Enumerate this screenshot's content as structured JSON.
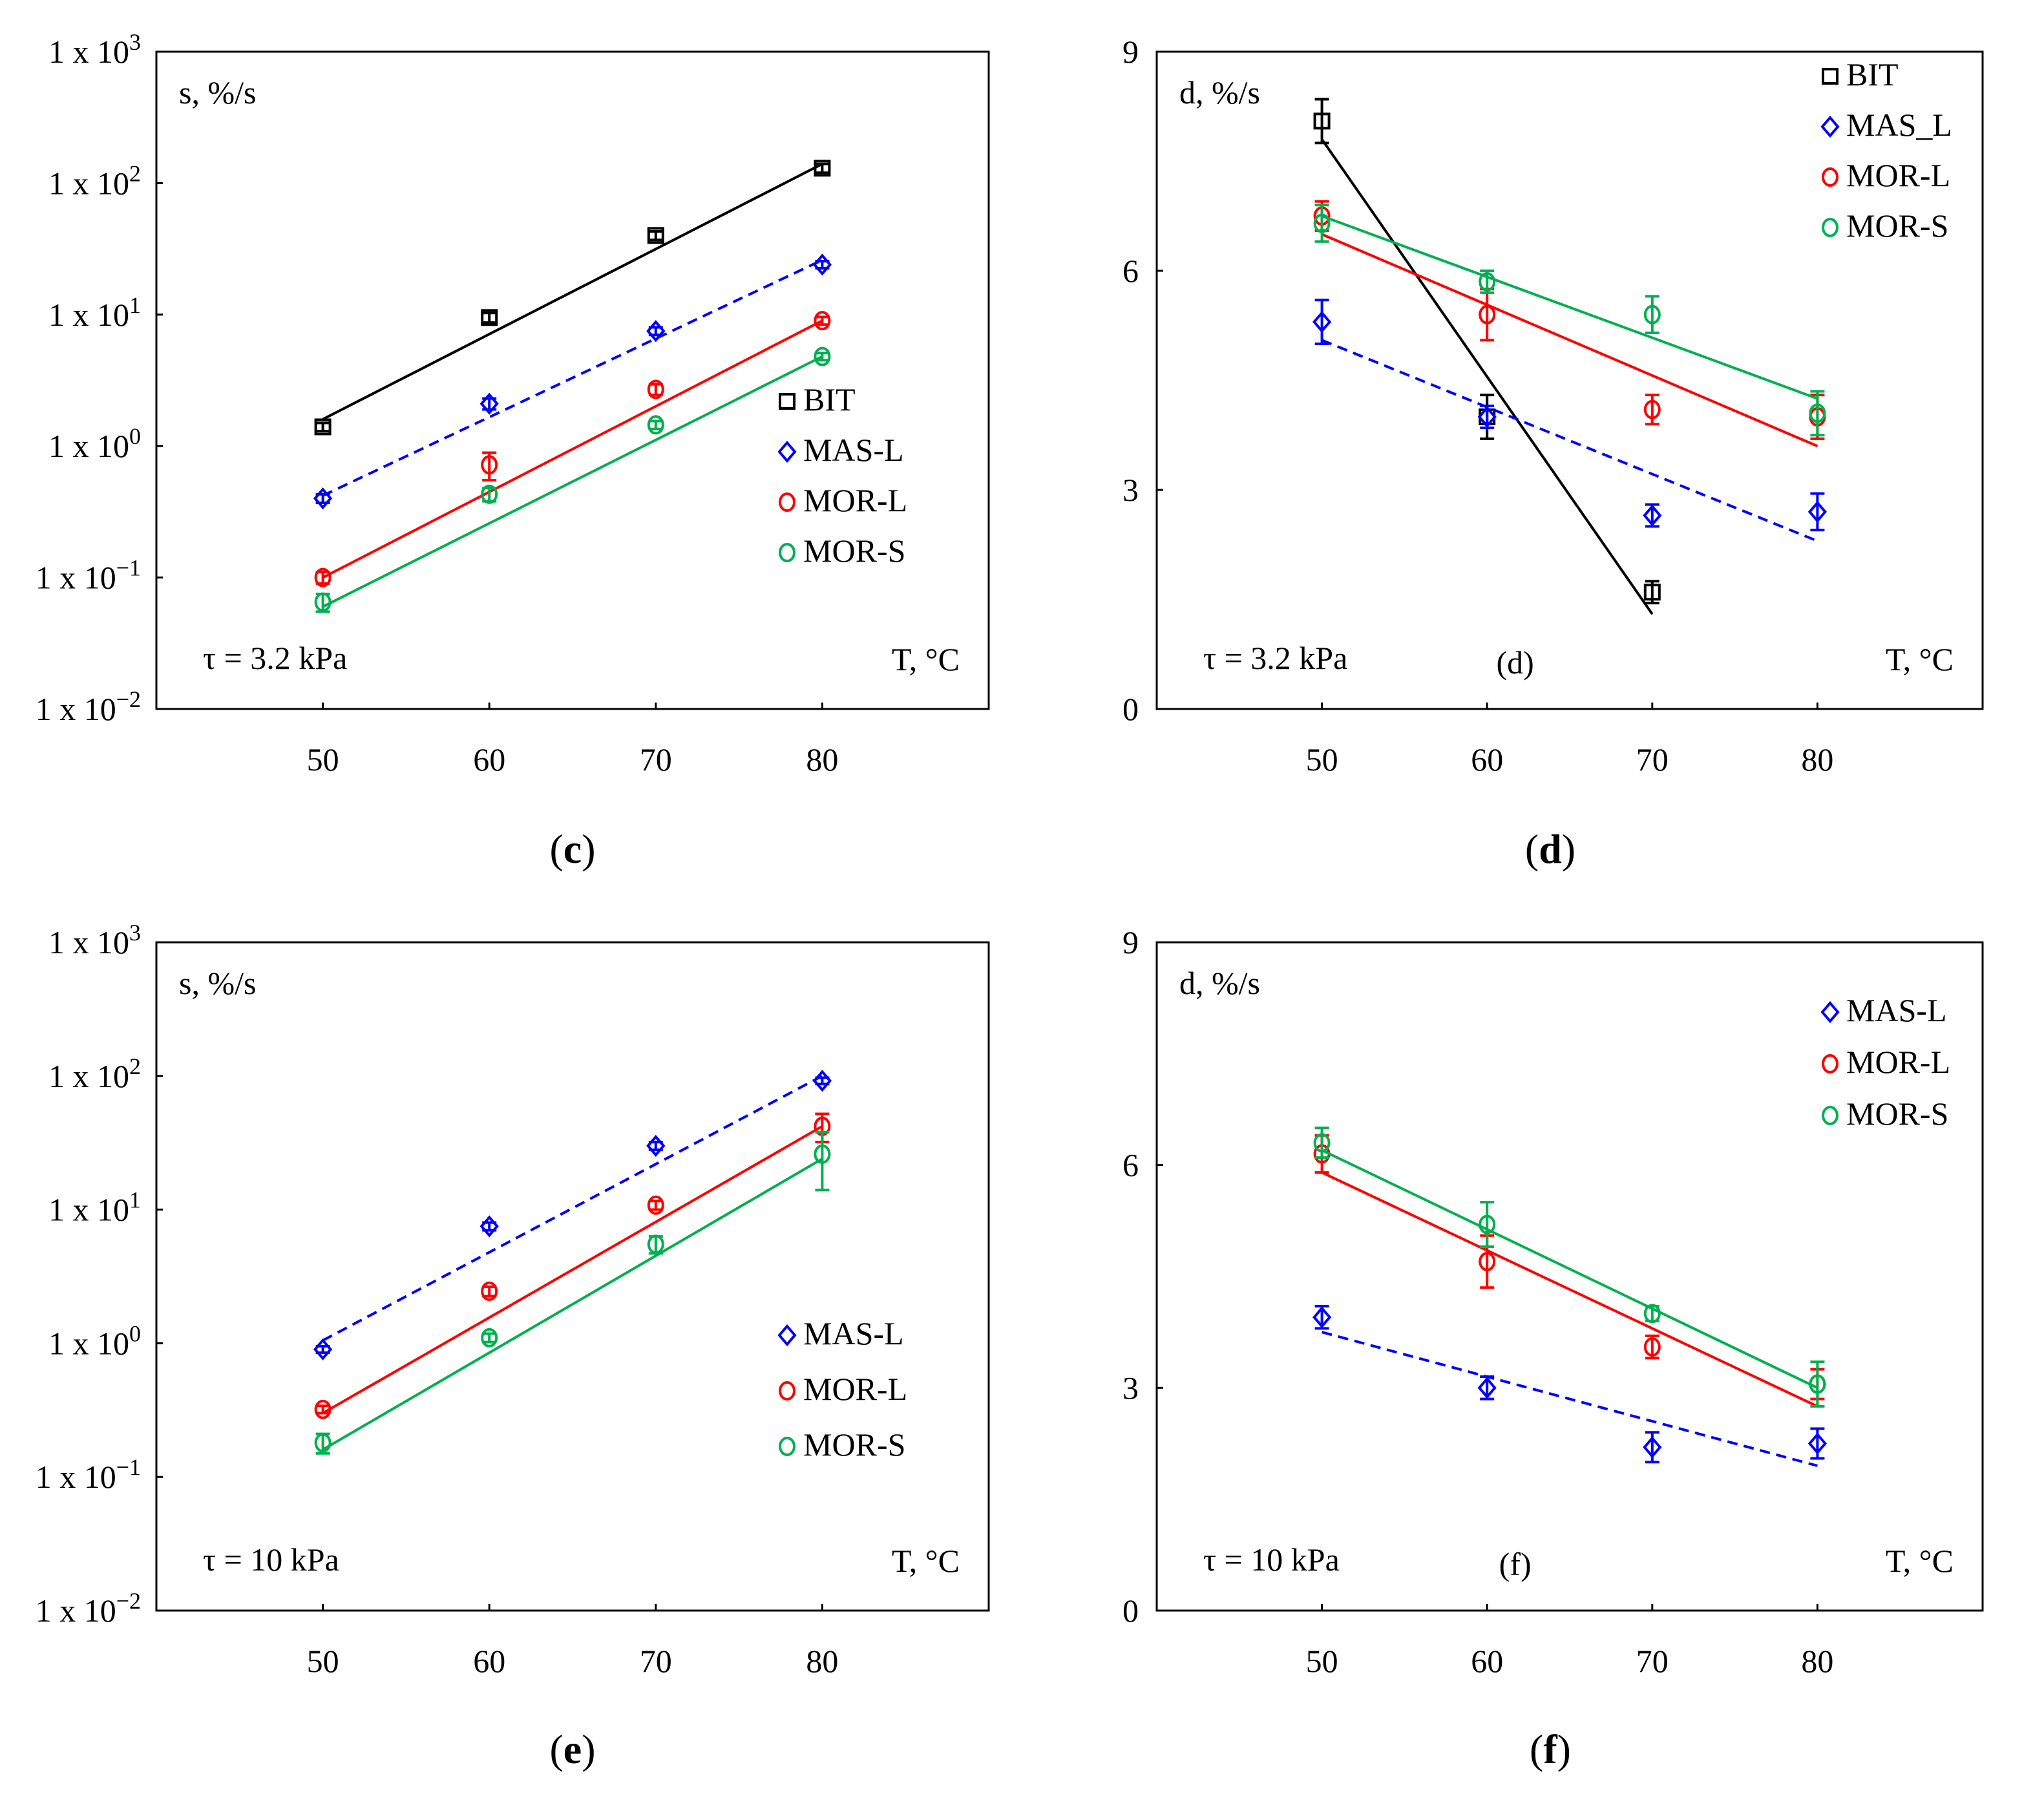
{
  "colors": {
    "BIT": "#000000",
    "MAS-L": "#0000ff",
    "MOR-L": "#ff0000",
    "MOR-S": "#00b050",
    "axis": "#000000",
    "background": "#ffffff"
  },
  "markers": {
    "BIT": "square",
    "MAS-L": "diamond",
    "MOR-L": "circle",
    "MOR-S": "circle"
  },
  "chart_data": [
    {
      "id": "c",
      "type": "scatter",
      "yscale": "log",
      "ylabel": "s, %/s",
      "xlabel": "T, °C",
      "annotation": "τ = 3.2 kPa",
      "caption": {
        "open": "(",
        "letter": "c",
        "close": ")"
      },
      "x": [
        50,
        60,
        70,
        80
      ],
      "xlim": [
        40,
        90
      ],
      "ylim": [
        0.01,
        1000
      ],
      "xticks": [
        50,
        60,
        70,
        80
      ],
      "yticks": [
        {
          "value": 1000,
          "base": "1 x 10",
          "exp": "3"
        },
        {
          "value": 100,
          "base": "1 x 10",
          "exp": "2"
        },
        {
          "value": 10,
          "base": "1 x 10",
          "exp": "1"
        },
        {
          "value": 1,
          "base": "1 x 10",
          "exp": "0"
        },
        {
          "value": 0.1,
          "base": "1 x 10",
          "exp": "−1"
        },
        {
          "value": 0.01,
          "base": "1 x 10",
          "exp": "−2"
        }
      ],
      "legend_position": "center-right",
      "series": [
        {
          "name": "BIT",
          "values": [
            1.4,
            9.5,
            40,
            130
          ],
          "err": [
            0.1,
            0.8,
            3,
            10
          ],
          "fit": {
            "form": "exp",
            "x": [
              50,
              80
            ],
            "y": [
              1.6,
              140
            ]
          },
          "dashed": false
        },
        {
          "name": "MAS-L",
          "values": [
            0.4,
            2.1,
            7.5,
            24
          ],
          "err": [
            0.03,
            0.2,
            0.5,
            1.5
          ],
          "fit": {
            "form": "exp",
            "x": [
              50,
              80
            ],
            "y": [
              0.42,
              26
            ]
          },
          "dashed": true
        },
        {
          "name": "MOR-L",
          "values": [
            0.1,
            0.72,
            2.7,
            9
          ],
          "err": [
            0.01,
            0.17,
            0.25,
            0.6
          ],
          "fit": {
            "form": "exp",
            "x": [
              50,
              80
            ],
            "y": [
              0.1,
              9
            ]
          },
          "dashed": false
        },
        {
          "name": "MOR-S",
          "values": [
            0.065,
            0.43,
            1.45,
            4.8
          ],
          "err": [
            0.01,
            0.05,
            0.1,
            0.3
          ],
          "fit": {
            "form": "exp",
            "x": [
              50,
              80
            ],
            "y": [
              0.06,
              4.8
            ]
          },
          "dashed": false
        }
      ]
    },
    {
      "id": "d",
      "type": "scatter",
      "yscale": "linear",
      "ylabel": "d, %/s",
      "xlabel": "T, °C",
      "annotation": "τ = 3.2 kPa",
      "panel_label": "(d)",
      "caption": {
        "open": "(",
        "letter": "d",
        "close": ")"
      },
      "x": [
        50,
        60,
        70,
        80
      ],
      "xlim": [
        40,
        90
      ],
      "ylim": [
        0,
        9
      ],
      "xticks": [
        50,
        60,
        70,
        80
      ],
      "yticks": [
        {
          "value": 9,
          "label": "9"
        },
        {
          "value": 6,
          "label": "6"
        },
        {
          "value": 3,
          "label": "3"
        },
        {
          "value": 0,
          "label": "0"
        }
      ],
      "legend_position": "top-right",
      "series": [
        {
          "name": "BIT",
          "x": [
            50,
            60,
            70
          ],
          "values": [
            8.05,
            4.0,
            1.6
          ],
          "err": [
            0.3,
            0.3,
            0.15
          ],
          "fit": {
            "form": "linear",
            "x": [
              50,
              70
            ],
            "y": [
              7.8,
              1.3
            ]
          },
          "dashed": false
        },
        {
          "name": "MAS_L",
          "values": [
            5.3,
            4.0,
            2.65,
            2.7
          ],
          "err": [
            0.3,
            0.15,
            0.15,
            0.25
          ],
          "fit": {
            "form": "linear",
            "x": [
              50,
              80
            ],
            "y": [
              5.05,
              2.3
            ]
          },
          "dashed": true
        },
        {
          "name": "MOR-L",
          "values": [
            6.75,
            5.4,
            4.1,
            4.0
          ],
          "err": [
            0.2,
            0.35,
            0.2,
            0.3
          ],
          "fit": {
            "form": "linear",
            "x": [
              50,
              80
            ],
            "y": [
              6.5,
              3.6
            ]
          },
          "dashed": false
        },
        {
          "name": "MOR-S",
          "values": [
            6.65,
            5.85,
            5.4,
            4.05
          ],
          "err": [
            0.25,
            0.15,
            0.25,
            0.3
          ],
          "fit": {
            "form": "linear",
            "x": [
              50,
              80
            ],
            "y": [
              6.75,
              4.25
            ]
          },
          "dashed": false
        }
      ]
    },
    {
      "id": "e",
      "type": "scatter",
      "yscale": "log",
      "ylabel": "s, %/s",
      "xlabel": "T, °C",
      "annotation": "τ = 10 kPa",
      "caption": {
        "open": "(",
        "letter": "e",
        "close": ")"
      },
      "x": [
        50,
        60,
        70,
        80
      ],
      "xlim": [
        40,
        90
      ],
      "ylim": [
        0.01,
        1000
      ],
      "xticks": [
        50,
        60,
        70,
        80
      ],
      "yticks": [
        {
          "value": 1000,
          "base": "1 x 10",
          "exp": "3"
        },
        {
          "value": 100,
          "base": "1 x 10",
          "exp": "2"
        },
        {
          "value": 10,
          "base": "1 x 10",
          "exp": "1"
        },
        {
          "value": 1,
          "base": "1 x 10",
          "exp": "0"
        },
        {
          "value": 0.1,
          "base": "1 x 10",
          "exp": "−1"
        },
        {
          "value": 0.01,
          "base": "1 x 10",
          "exp": "−2"
        }
      ],
      "legend_position": "bottom-right",
      "series": [
        {
          "name": "MAS-L",
          "values": [
            0.9,
            7.5,
            30,
            92
          ],
          "err": [
            0.05,
            0.5,
            2,
            5
          ],
          "fit": {
            "form": "exp",
            "x": [
              50,
              80
            ],
            "y": [
              1.05,
              100
            ]
          },
          "dashed": true
        },
        {
          "name": "MOR-L",
          "values": [
            0.32,
            2.45,
            10.8,
            42
          ],
          "err": [
            0.02,
            0.2,
            0.8,
            10
          ],
          "fit": {
            "form": "exp",
            "x": [
              50,
              80
            ],
            "y": [
              0.3,
              42
            ]
          },
          "dashed": false
        },
        {
          "name": "MOR-S",
          "values": [
            0.18,
            1.1,
            5.5,
            26
          ],
          "err": [
            0.03,
            0.08,
            0.8,
            12
          ],
          "fit": {
            "form": "exp",
            "x": [
              50,
              80
            ],
            "y": [
              0.16,
              24
            ]
          },
          "dashed": false
        }
      ]
    },
    {
      "id": "f",
      "type": "scatter",
      "yscale": "linear",
      "ylabel": "d, %/s",
      "xlabel": "T, °C",
      "annotation": "τ = 10 kPa",
      "panel_label": "(f)",
      "caption": {
        "open": "(",
        "letter": "f",
        "close": ")"
      },
      "x": [
        50,
        60,
        70,
        80
      ],
      "xlim": [
        40,
        90
      ],
      "ylim": [
        0,
        9
      ],
      "xticks": [
        50,
        60,
        70,
        80
      ],
      "yticks": [
        {
          "value": 9,
          "label": "9"
        },
        {
          "value": 6,
          "label": "6"
        },
        {
          "value": 3,
          "label": "3"
        },
        {
          "value": 0,
          "label": "0"
        }
      ],
      "legend_position": "top-right",
      "series": [
        {
          "name": "MAS-L",
          "values": [
            3.95,
            3.0,
            2.2,
            2.25
          ],
          "err": [
            0.15,
            0.15,
            0.2,
            0.2
          ],
          "fit": {
            "form": "linear",
            "x": [
              50,
              80
            ],
            "y": [
              3.75,
              1.95
            ]
          },
          "dashed": true
        },
        {
          "name": "MOR-L",
          "values": [
            6.15,
            4.7,
            3.55,
            3.05
          ],
          "err": [
            0.25,
            0.35,
            0.15,
            0.2
          ],
          "fit": {
            "form": "linear",
            "x": [
              50,
              80
            ],
            "y": [
              5.9,
              2.75
            ]
          },
          "dashed": false
        },
        {
          "name": "MOR-S",
          "values": [
            6.3,
            5.2,
            4.0,
            3.05
          ],
          "err": [
            0.2,
            0.3,
            0.1,
            0.3
          ],
          "fit": {
            "form": "linear",
            "x": [
              50,
              80
            ],
            "y": [
              6.2,
              3.0
            ]
          },
          "dashed": false
        }
      ]
    }
  ]
}
